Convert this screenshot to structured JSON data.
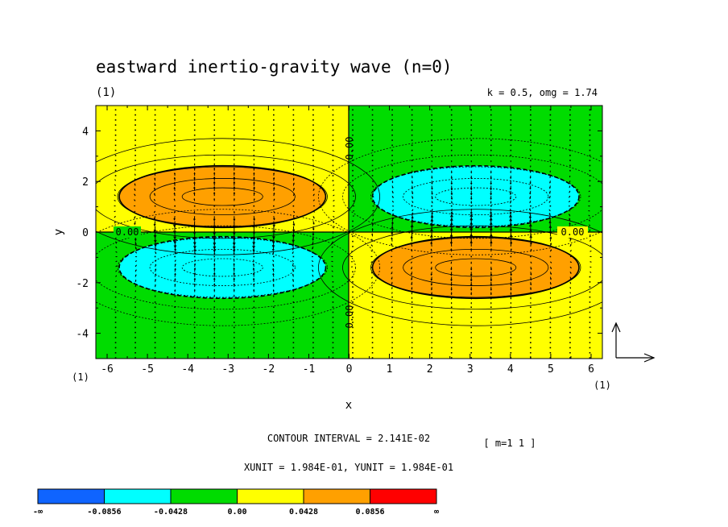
{
  "chart_data": {
    "type": "heatmap",
    "title": "eastward inertio-gravity wave (n=0)",
    "panel_label": "(1)",
    "params_text": "k = 0.5, omg = 1.74",
    "xlabel": "x",
    "ylabel": "y",
    "x_unit_label": "(1)",
    "y_unit_label": "(1)",
    "xlim": [
      -6.28,
      6.28
    ],
    "ylim": [
      -5,
      5
    ],
    "xticks": [
      "-6",
      "-5",
      "-4",
      "-3",
      "-2",
      "-1",
      "0",
      "1",
      "2",
      "3",
      "4",
      "5",
      "6"
    ],
    "yticks": [
      "4",
      "2",
      "0",
      "-2",
      "-4"
    ],
    "contour_interval_text": "CONTOUR INTERVAL = 2.141E-02",
    "vector_scale_text": "[ m=1 1 ]",
    "unit_text": "XUNIT = 1.984E-01, YUNIT = 1.984E-01",
    "zero_contour_labels": [
      "0.00",
      "0.00",
      "0.00",
      "0.00"
    ],
    "field": "sin(k*x)*y*exp(-y^2/2)",
    "cells": [
      {
        "x": [
          -6.28,
          0
        ],
        "y": [
          0,
          5
        ],
        "sign": "positive"
      },
      {
        "x": [
          0,
          6.28
        ],
        "y": [
          0,
          5
        ],
        "sign": "negative"
      },
      {
        "x": [
          -6.28,
          0
        ],
        "y": [
          -5,
          0
        ],
        "sign": "negative"
      },
      {
        "x": [
          0,
          6.28
        ],
        "y": [
          -5,
          0
        ],
        "sign": "positive"
      }
    ],
    "extrema": [
      {
        "x": -3.14,
        "y": 1.4,
        "value": 0.0856,
        "level": "0.0428 to 0.0856"
      },
      {
        "x": -3.14,
        "y": -1.4,
        "value": -0.0856,
        "level": "-0.0856 to -0.0428"
      },
      {
        "x": 3.14,
        "y": 1.4,
        "value": -0.0856,
        "level": "-0.0856 to -0.0428"
      },
      {
        "x": 3.14,
        "y": -1.4,
        "value": 0.0856,
        "level": "0.0428 to 0.0856"
      }
    ],
    "colorbar": {
      "levels": [
        "-∞",
        "-0.0856",
        "-0.0428",
        "0.00",
        "0.0428",
        "0.0856",
        "∞"
      ],
      "colors": [
        "#0f64ff",
        "#00ffff",
        "#00dc00",
        "#ffff00",
        "#ffa000",
        "#ff0000"
      ]
    },
    "grid": false,
    "legend": "bottom"
  }
}
